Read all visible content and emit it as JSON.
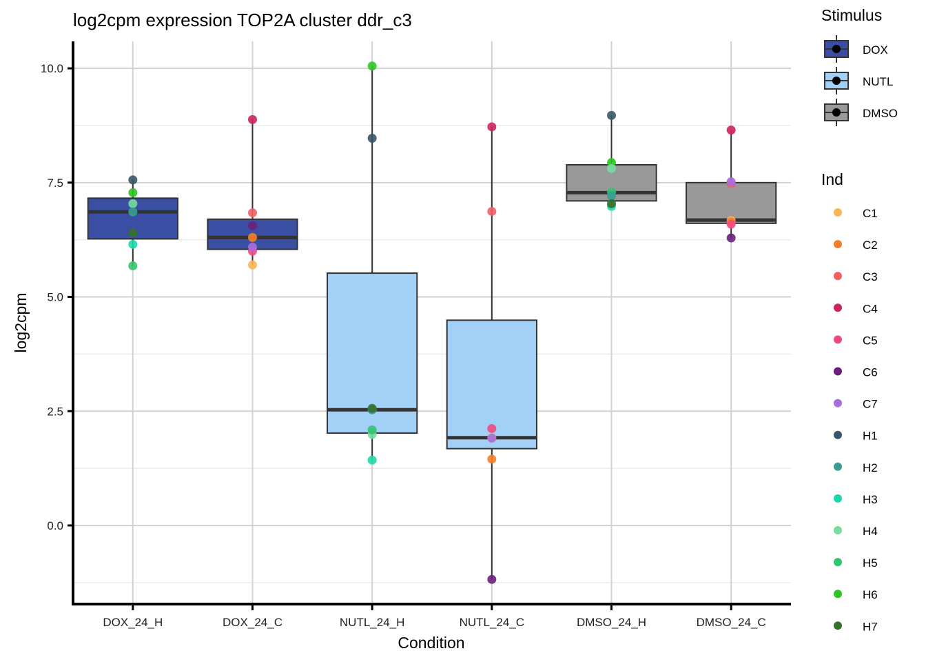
{
  "chart_data": {
    "type": "box",
    "title": "log2cpm expression TOP2A cluster ddr_c3",
    "xlabel": "Condition",
    "ylabel": "log2cpm",
    "ylim": [
      -1.72,
      10.59
    ],
    "yticks": [
      0.0,
      2.5,
      5.0,
      7.5,
      10.0
    ],
    "ytick_labels": [
      "0.0",
      "2.5",
      "5.0",
      "7.5",
      "10.0"
    ],
    "minor_gridlines": [
      -1.25,
      1.25,
      3.75,
      6.25,
      8.75
    ],
    "grid": true,
    "categories": [
      "DOX_24_H",
      "DOX_24_C",
      "NUTL_24_H",
      "NUTL_24_C",
      "DMSO_24_H",
      "DMSO_24_C"
    ],
    "boxes": [
      {
        "category": "DOX_24_H",
        "stimulus": "DOX",
        "q1": 6.27,
        "median": 6.86,
        "q3": 7.16,
        "whisker_low": 5.68,
        "whisker_high": 7.56
      },
      {
        "category": "DOX_24_C",
        "stimulus": "DOX",
        "q1": 6.04,
        "median": 6.3,
        "q3": 6.7,
        "whisker_low": 5.7,
        "whisker_high": 8.88
      },
      {
        "category": "NUTL_24_H",
        "stimulus": "NUTL",
        "q1": 2.02,
        "median": 2.53,
        "q3": 5.52,
        "whisker_low": 1.43,
        "whisker_high": 10.05
      },
      {
        "category": "NUTL_24_C",
        "stimulus": "NUTL",
        "q1": 1.68,
        "median": 1.92,
        "q3": 4.49,
        "whisker_low": -1.18,
        "whisker_high": 8.72
      },
      {
        "category": "DMSO_24_H",
        "stimulus": "DMSO",
        "q1": 7.1,
        "median": 7.28,
        "q3": 7.89,
        "whisker_low": 6.98,
        "whisker_high": 8.97
      },
      {
        "category": "DMSO_24_C",
        "stimulus": "DMSO",
        "q1": 6.61,
        "median": 6.68,
        "q3": 7.5,
        "whisker_low": 6.29,
        "whisker_high": 8.65
      }
    ],
    "points": [
      {
        "category": "DOX_24_H",
        "ind": "H1",
        "value": 7.56
      },
      {
        "category": "DOX_24_H",
        "ind": "H6",
        "value": 7.28
      },
      {
        "category": "DOX_24_H",
        "ind": "H4",
        "value": 7.04
      },
      {
        "category": "DOX_24_H",
        "ind": "H2",
        "value": 6.86
      },
      {
        "category": "DOX_24_H",
        "ind": "H7",
        "value": 6.4
      },
      {
        "category": "DOX_24_H",
        "ind": "H3",
        "value": 6.15
      },
      {
        "category": "DOX_24_H",
        "ind": "H5",
        "value": 5.68
      },
      {
        "category": "DOX_24_C",
        "ind": "C4",
        "value": 8.88
      },
      {
        "category": "DOX_24_C",
        "ind": "C3",
        "value": 6.84
      },
      {
        "category": "DOX_24_C",
        "ind": "C6",
        "value": 6.56
      },
      {
        "category": "DOX_24_C",
        "ind": "C2",
        "value": 6.3
      },
      {
        "category": "DOX_24_C",
        "ind": "C5",
        "value": 6.0
      },
      {
        "category": "DOX_24_C",
        "ind": "C7",
        "value": 6.09
      },
      {
        "category": "DOX_24_C",
        "ind": "C1",
        "value": 5.7
      },
      {
        "category": "NUTL_24_H",
        "ind": "H6",
        "value": 10.05
      },
      {
        "category": "NUTL_24_H",
        "ind": "H1",
        "value": 8.47
      },
      {
        "category": "NUTL_24_H",
        "ind": "H2",
        "value": 2.53
      },
      {
        "category": "NUTL_24_H",
        "ind": "H7",
        "value": 2.56
      },
      {
        "category": "NUTL_24_H",
        "ind": "H4",
        "value": 1.99
      },
      {
        "category": "NUTL_24_H",
        "ind": "H5",
        "value": 2.09
      },
      {
        "category": "NUTL_24_H",
        "ind": "H3",
        "value": 1.43
      },
      {
        "category": "NUTL_24_C",
        "ind": "C4",
        "value": 8.72
      },
      {
        "category": "NUTL_24_C",
        "ind": "C3",
        "value": 6.87
      },
      {
        "category": "NUTL_24_C",
        "ind": "C1",
        "value": 1.92
      },
      {
        "category": "NUTL_24_C",
        "ind": "C5",
        "value": 2.12
      },
      {
        "category": "NUTL_24_C",
        "ind": "C7",
        "value": 1.91
      },
      {
        "category": "NUTL_24_C",
        "ind": "C2",
        "value": 1.45
      },
      {
        "category": "NUTL_24_C",
        "ind": "C6",
        "value": -1.18
      },
      {
        "category": "DMSO_24_H",
        "ind": "H1",
        "value": 8.97
      },
      {
        "category": "DMSO_24_H",
        "ind": "H6",
        "value": 7.94
      },
      {
        "category": "DMSO_24_H",
        "ind": "H4",
        "value": 7.81
      },
      {
        "category": "DMSO_24_H",
        "ind": "H3",
        "value": 6.98
      },
      {
        "category": "DMSO_24_H",
        "ind": "H5",
        "value": 7.29
      },
      {
        "category": "DMSO_24_H",
        "ind": "H2",
        "value": 7.21
      },
      {
        "category": "DMSO_24_H",
        "ind": "H7",
        "value": 7.04
      },
      {
        "category": "DMSO_24_C",
        "ind": "C4",
        "value": 8.65
      },
      {
        "category": "DMSO_24_C",
        "ind": "C3",
        "value": 7.48
      },
      {
        "category": "DMSO_24_C",
        "ind": "C7",
        "value": 7.52
      },
      {
        "category": "DMSO_24_C",
        "ind": "C1",
        "value": 6.67
      },
      {
        "category": "DMSO_24_C",
        "ind": "C2",
        "value": 6.64
      },
      {
        "category": "DMSO_24_C",
        "ind": "C5",
        "value": 6.59
      },
      {
        "category": "DMSO_24_C",
        "ind": "C6",
        "value": 6.29
      }
    ],
    "legends": [
      {
        "title": "Stimulus",
        "placement": "right-top",
        "entries": [
          {
            "label": "DOX",
            "color": "#3a4fa3"
          },
          {
            "label": "NUTL",
            "color": "#a2d0f7"
          },
          {
            "label": "DMSO",
            "color": "#999999"
          }
        ]
      },
      {
        "title": "Ind",
        "placement": "right",
        "entries": [
          {
            "label": "C1",
            "color": "#fbb555"
          },
          {
            "label": "C2",
            "color": "#f47f2a"
          },
          {
            "label": "C3",
            "color": "#f15f64"
          },
          {
            "label": "C4",
            "color": "#cc2461"
          },
          {
            "label": "C5",
            "color": "#ef4a7e"
          },
          {
            "label": "C6",
            "color": "#6a1f7c"
          },
          {
            "label": "C7",
            "color": "#a66ede"
          },
          {
            "label": "H1",
            "color": "#395667"
          },
          {
            "label": "H2",
            "color": "#389e94"
          },
          {
            "label": "H3",
            "color": "#1ed8a7"
          },
          {
            "label": "H4",
            "color": "#76dd9c"
          },
          {
            "label": "H5",
            "color": "#31c46c"
          },
          {
            "label": "H6",
            "color": "#2fc424"
          },
          {
            "label": "H7",
            "color": "#37702a"
          }
        ]
      }
    ]
  }
}
